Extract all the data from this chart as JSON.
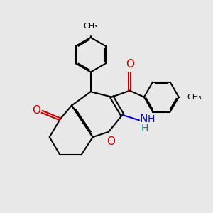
{
  "bg_color": "#e8e8e8",
  "bond_color": "#000000",
  "o_color": "#cc0000",
  "n_color": "#0000cc",
  "h_color": "#008080",
  "figsize": [
    3.0,
    3.0
  ],
  "dpi": 100,
  "xlim": [
    0,
    10
  ],
  "ylim": [
    0,
    10
  ],
  "lw": 1.5,
  "db_off": 0.08,
  "ring_r": 0.82
}
